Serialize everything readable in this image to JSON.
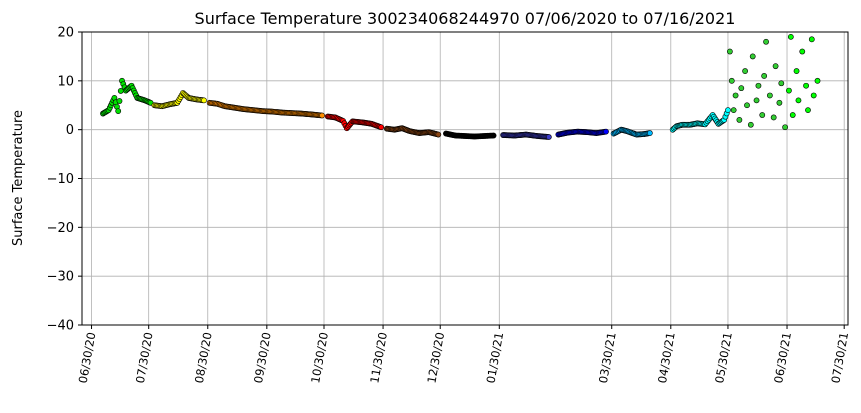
{
  "chart_data": {
    "type": "scatter",
    "title": "Surface Temperature 300234068244970  07/06/2020 to 07/16/2021",
    "xlabel": "",
    "ylabel": "Surface Temperature",
    "x_axis_type": "date",
    "xlim": [
      "2020-06-25",
      "2021-08-01"
    ],
    "ylim": [
      -40,
      20
    ],
    "yticks": [
      -40,
      -30,
      -20,
      -10,
      0,
      10,
      20
    ],
    "yticklabels": [
      "−40",
      "−30",
      "−20",
      "−10",
      "0",
      "10",
      "20"
    ],
    "xticks": [
      "2020-06-30",
      "2020-07-30",
      "2020-08-30",
      "2020-09-30",
      "2020-10-30",
      "2020-11-30",
      "2020-12-30",
      "2021-01-30",
      "2021-03-30",
      "2021-04-30",
      "2021-05-30",
      "2021-06-30",
      "2021-07-30"
    ],
    "xticklabels": [
      "06/30/20",
      "07/30/20",
      "08/30/20",
      "09/30/20",
      "10/30/20",
      "11/30/20",
      "12/30/20",
      "01/30/21",
      "03/30/21",
      "04/30/21",
      "05/30/21",
      "06/30/21",
      "07/30/21"
    ],
    "grid": true,
    "legend": "none",
    "marker": "circle, black edge",
    "series": [
      {
        "color": "#00e000",
        "points": [
          [
            "2020-07-06",
            3.3
          ],
          [
            "2020-07-09",
            4.0
          ],
          [
            "2020-07-12",
            6.5
          ],
          [
            "2020-07-14",
            3.8
          ],
          [
            "2020-07-16",
            10.0
          ],
          [
            "2020-07-18",
            8.0
          ],
          [
            "2020-07-21",
            9.0
          ],
          [
            "2020-07-24",
            6.5
          ],
          [
            "2020-07-28",
            6.0
          ],
          [
            "2020-07-31",
            5.5
          ]
        ]
      },
      {
        "color": "#ffff00",
        "points": [
          [
            "2020-08-02",
            5.0
          ],
          [
            "2020-08-06",
            4.8
          ],
          [
            "2020-08-10",
            5.2
          ],
          [
            "2020-08-14",
            5.5
          ],
          [
            "2020-08-17",
            7.5
          ],
          [
            "2020-08-20",
            6.5
          ],
          [
            "2020-08-24",
            6.2
          ],
          [
            "2020-08-28",
            6.0
          ]
        ]
      },
      {
        "color": "#ff8c00",
        "points": [
          [
            "2020-08-31",
            5.5
          ],
          [
            "2020-09-04",
            5.3
          ],
          [
            "2020-09-08",
            4.8
          ],
          [
            "2020-09-13",
            4.5
          ],
          [
            "2020-09-18",
            4.2
          ],
          [
            "2020-09-23",
            4.0
          ],
          [
            "2020-09-28",
            3.8
          ],
          [
            "2020-10-03",
            3.7
          ],
          [
            "2020-10-08",
            3.5
          ],
          [
            "2020-10-13",
            3.4
          ],
          [
            "2020-10-18",
            3.3
          ],
          [
            "2020-10-24",
            3.1
          ],
          [
            "2020-10-29",
            2.9
          ]
        ]
      },
      {
        "color": "#ff0000",
        "points": [
          [
            "2020-11-01",
            2.7
          ],
          [
            "2020-11-05",
            2.5
          ],
          [
            "2020-11-09",
            1.8
          ],
          [
            "2020-11-11",
            0.3
          ],
          [
            "2020-11-14",
            1.7
          ],
          [
            "2020-11-19",
            1.5
          ],
          [
            "2020-11-24",
            1.2
          ],
          [
            "2020-11-29",
            0.5
          ]
        ]
      },
      {
        "color": "#8b4513",
        "points": [
          [
            "2020-12-02",
            0.2
          ],
          [
            "2020-12-06",
            0.0
          ],
          [
            "2020-12-10",
            0.3
          ],
          [
            "2020-12-14",
            -0.3
          ],
          [
            "2020-12-19",
            -0.7
          ],
          [
            "2020-12-24",
            -0.5
          ],
          [
            "2020-12-29",
            -1.0
          ]
        ]
      },
      {
        "color": "#000000",
        "points": [
          [
            "2021-01-02",
            -0.8
          ],
          [
            "2021-01-07",
            -1.2
          ],
          [
            "2021-01-12",
            -1.3
          ],
          [
            "2021-01-17",
            -1.4
          ],
          [
            "2021-01-22",
            -1.3
          ],
          [
            "2021-01-27",
            -1.2
          ]
        ]
      },
      {
        "color": "#3c3cc8",
        "points": [
          [
            "2021-02-01",
            -1.1
          ],
          [
            "2021-02-07",
            -1.2
          ],
          [
            "2021-02-13",
            -1.0
          ],
          [
            "2021-02-19",
            -1.3
          ],
          [
            "2021-02-25",
            -1.5
          ]
        ]
      },
      {
        "color": "#0000ff",
        "points": [
          [
            "2021-03-02",
            -1.0
          ],
          [
            "2021-03-07",
            -0.6
          ],
          [
            "2021-03-12",
            -0.4
          ],
          [
            "2021-03-17",
            -0.5
          ],
          [
            "2021-03-22",
            -0.7
          ],
          [
            "2021-03-27",
            -0.4
          ]
        ]
      },
      {
        "color": "#00b8ff",
        "points": [
          [
            "2021-03-31",
            -0.8
          ],
          [
            "2021-04-04",
            0.0
          ],
          [
            "2021-04-07",
            -0.3
          ],
          [
            "2021-04-12",
            -1.0
          ],
          [
            "2021-04-16",
            -0.9
          ],
          [
            "2021-04-19",
            -0.7
          ]
        ]
      },
      {
        "color": "#00ffff",
        "points": [
          [
            "2021-05-01",
            0.0
          ],
          [
            "2021-05-03",
            0.7
          ],
          [
            "2021-05-06",
            1.0
          ],
          [
            "2021-05-10",
            1.0
          ],
          [
            "2021-05-14",
            1.3
          ],
          [
            "2021-05-18",
            1.1
          ],
          [
            "2021-05-22",
            3.0
          ],
          [
            "2021-05-25",
            1.2
          ],
          [
            "2021-05-28",
            2.0
          ],
          [
            "2021-05-30",
            4.0
          ]
        ]
      },
      {
        "color": "#32cd32",
        "points": [
          [
            "2021-05-31",
            16.0
          ],
          [
            "2021-06-01",
            10.0
          ],
          [
            "2021-06-02",
            4.0
          ],
          [
            "2021-06-03",
            7.0
          ],
          [
            "2021-06-05",
            2.0
          ],
          [
            "2021-06-06",
            8.5
          ],
          [
            "2021-06-08",
            12.0
          ],
          [
            "2021-06-09",
            5.0
          ],
          [
            "2021-06-11",
            1.0
          ],
          [
            "2021-06-12",
            15.0
          ],
          [
            "2021-06-14",
            6.0
          ],
          [
            "2021-06-15",
            9.0
          ],
          [
            "2021-06-17",
            3.0
          ],
          [
            "2021-06-18",
            11.0
          ],
          [
            "2021-06-19",
            18.0
          ],
          [
            "2021-06-21",
            7.0
          ],
          [
            "2021-06-23",
            2.5
          ],
          [
            "2021-06-24",
            13.0
          ],
          [
            "2021-06-26",
            5.5
          ],
          [
            "2021-06-27",
            9.5
          ],
          [
            "2021-06-29",
            0.5
          ]
        ]
      },
      {
        "color": "#00ff00",
        "points": [
          [
            "2021-07-01",
            8.0
          ],
          [
            "2021-07-02",
            19.0
          ],
          [
            "2021-07-03",
            3.0
          ],
          [
            "2021-07-05",
            12.0
          ],
          [
            "2021-07-06",
            6.0
          ],
          [
            "2021-07-08",
            16.0
          ],
          [
            "2021-07-10",
            9.0
          ],
          [
            "2021-07-11",
            4.0
          ],
          [
            "2021-07-13",
            18.5
          ],
          [
            "2021-07-14",
            7.0
          ],
          [
            "2021-07-16",
            10.0
          ]
        ]
      }
    ]
  }
}
